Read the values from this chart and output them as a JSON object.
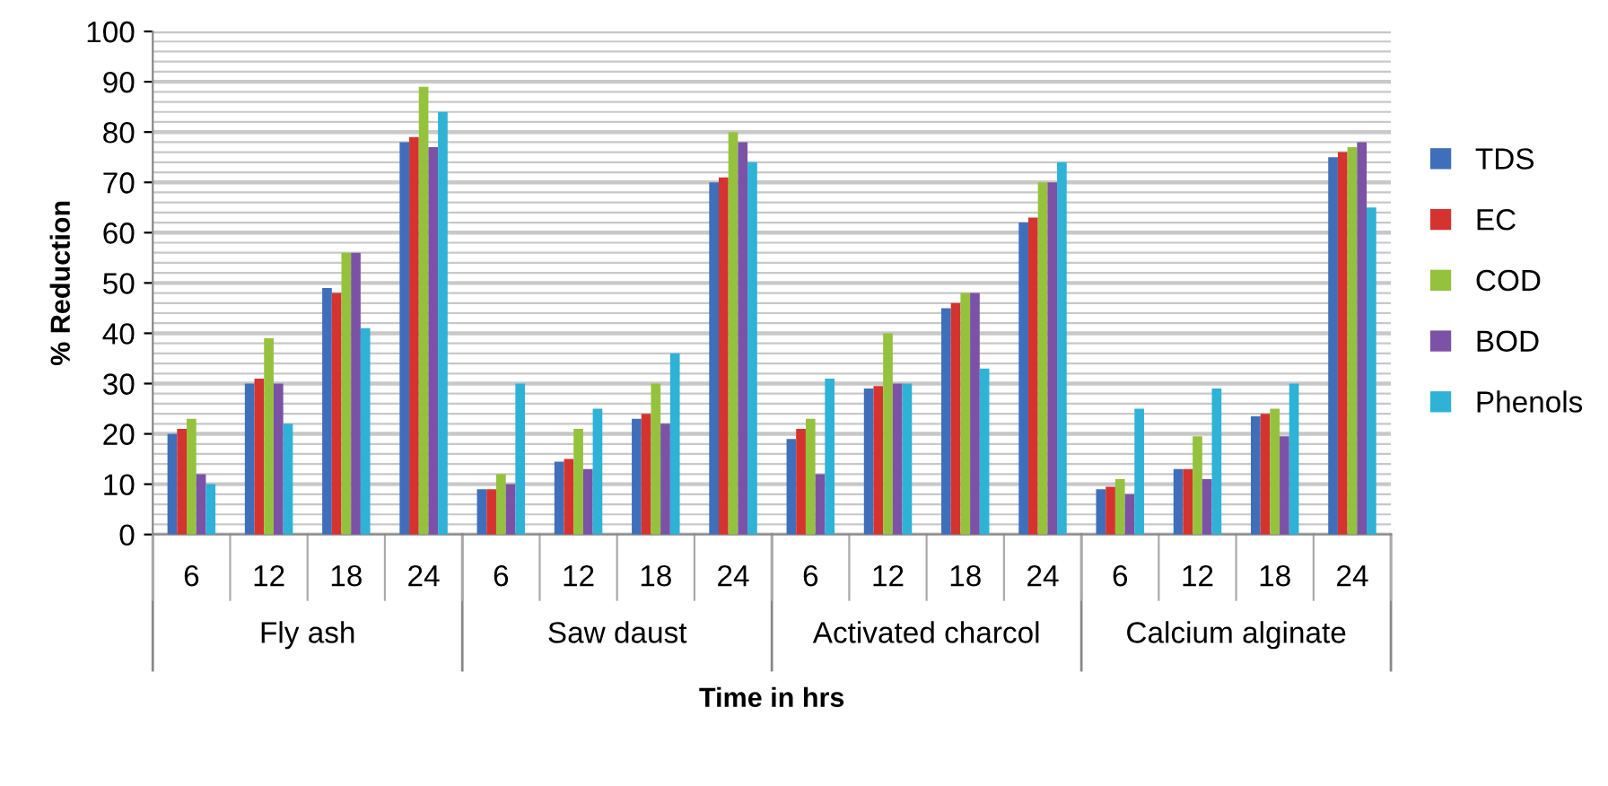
{
  "chart_data": {
    "type": "bar",
    "xlabel": "Time in hrs",
    "ylabel": "% Reduction",
    "categories": [
      "6",
      "12",
      "18",
      "24",
      "6",
      "12",
      "18",
      "24",
      "6",
      "12",
      "18",
      "24",
      "6",
      "12",
      "18",
      "24"
    ],
    "annotations": [
      "Fly ash",
      "Saw daust",
      "Activated charcol",
      "Calcium alginate"
    ],
    "series": [
      {
        "name": "TDS",
        "color": "#3f6fba",
        "values": [
          20,
          30,
          49,
          78,
          9,
          14.5,
          23,
          70,
          19,
          29,
          45,
          62,
          9,
          13,
          23.5,
          75
        ]
      },
      {
        "name": "EC",
        "color": "#d5332f",
        "values": [
          21,
          31,
          48,
          79,
          9,
          15,
          24,
          71,
          21,
          29.5,
          46,
          63,
          9.5,
          13,
          24,
          76
        ]
      },
      {
        "name": "COD",
        "color": "#95c23d",
        "values": [
          23,
          39,
          56,
          89,
          12,
          21,
          30,
          80,
          23,
          40,
          48,
          70,
          11,
          19.5,
          25,
          77
        ]
      },
      {
        "name": "BOD",
        "color": "#7b52a6",
        "values": [
          12,
          30,
          56,
          77,
          10,
          13,
          22,
          78,
          12,
          30,
          48,
          70,
          8,
          11,
          19.5,
          78
        ]
      },
      {
        "name": "Phenols",
        "color": "#2eb2d6",
        "values": [
          10,
          22,
          41,
          84,
          30,
          25,
          36,
          74,
          31,
          30,
          33,
          74,
          25,
          29,
          30,
          65
        ]
      }
    ],
    "ylim": [
      0,
      100
    ],
    "yticks": [
      0,
      10,
      20,
      30,
      40,
      50,
      60,
      70,
      80,
      90,
      100
    ],
    "grid": "y",
    "legend": "right"
  }
}
